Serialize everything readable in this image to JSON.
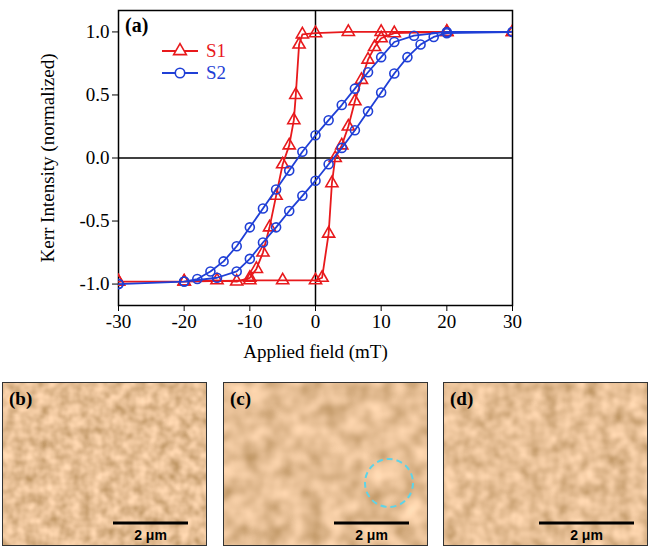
{
  "chart_data": {
    "type": "line",
    "annotations": [
      "(a)"
    ],
    "x_label": "Applied field (mT)",
    "y_label": "Kerr Intensity (normalized)",
    "series": [
      {
        "name": "S1",
        "color": "#e8191c",
        "marker": "triangle",
        "line_style": "solid",
        "x": [
          30,
          20,
          10,
          5,
          0,
          -2,
          -2.5,
          -3,
          -3.3,
          -4,
          -5,
          -6,
          -7,
          -8,
          -9,
          -10,
          -12,
          -15,
          -20,
          -30,
          -30,
          -20,
          -10,
          -5,
          0,
          1,
          2,
          2.5,
          3,
          4,
          5,
          6,
          7,
          8,
          9,
          10,
          12,
          20,
          30
        ],
        "values": [
          1,
          1,
          1,
          1,
          0.99,
          0.98,
          0.9,
          0.5,
          0.3,
          0.1,
          -0.05,
          -0.3,
          -0.55,
          -0.75,
          -0.88,
          -0.95,
          -0.98,
          -0.97,
          -0.98,
          -0.98,
          -0.98,
          -0.98,
          -0.97,
          -0.97,
          -0.97,
          -0.95,
          -0.6,
          -0.2,
          0.0,
          0.1,
          0.25,
          0.45,
          0.62,
          0.78,
          0.88,
          0.95,
          0.99,
          1,
          1
        ]
      },
      {
        "name": "S2",
        "color": "#1f3fd6",
        "marker": "circle",
        "line_style": "solid",
        "x": [
          30,
          20,
          15,
          12,
          10,
          8,
          6,
          4,
          2,
          0,
          -2,
          -4,
          -6,
          -8,
          -10,
          -12,
          -14,
          -16,
          -18,
          -20,
          -30,
          -30,
          -20,
          -15,
          -12,
          -10,
          -8,
          -6,
          -4,
          -2,
          0,
          2,
          4,
          6,
          8,
          10,
          12,
          14,
          16,
          18,
          20,
          30
        ],
        "values": [
          1,
          1,
          0.97,
          0.92,
          0.8,
          0.68,
          0.55,
          0.42,
          0.3,
          0.18,
          0.05,
          -0.1,
          -0.25,
          -0.4,
          -0.55,
          -0.7,
          -0.82,
          -0.9,
          -0.96,
          -0.98,
          -1,
          -1,
          -0.98,
          -0.95,
          -0.9,
          -0.8,
          -0.67,
          -0.55,
          -0.42,
          -0.3,
          -0.18,
          -0.05,
          0.08,
          0.22,
          0.37,
          0.52,
          0.67,
          0.8,
          0.9,
          0.96,
          0.99,
          1
        ]
      }
    ],
    "xlim": [
      -30,
      30
    ],
    "xticks": [
      -30,
      -20,
      -10,
      0,
      10,
      20,
      30
    ],
    "ylim": [
      -1.17,
      1.17
    ],
    "yticks": [
      {
        "value": -1,
        "label": "-1.0"
      },
      {
        "value": -0.5,
        "label": "-0.5"
      },
      {
        "value": 0,
        "label": "0.0"
      },
      {
        "value": 0.5,
        "label": "0.5"
      },
      {
        "value": 1,
        "label": "1.0"
      }
    ],
    "grid": false,
    "legend": "upper left"
  },
  "images": [
    {
      "label": "(b)",
      "scale_bar": "2 μm"
    },
    {
      "label": "(c)",
      "scale_bar": "2 μm"
    },
    {
      "label": "(d)",
      "scale_bar": "2 μm"
    }
  ]
}
